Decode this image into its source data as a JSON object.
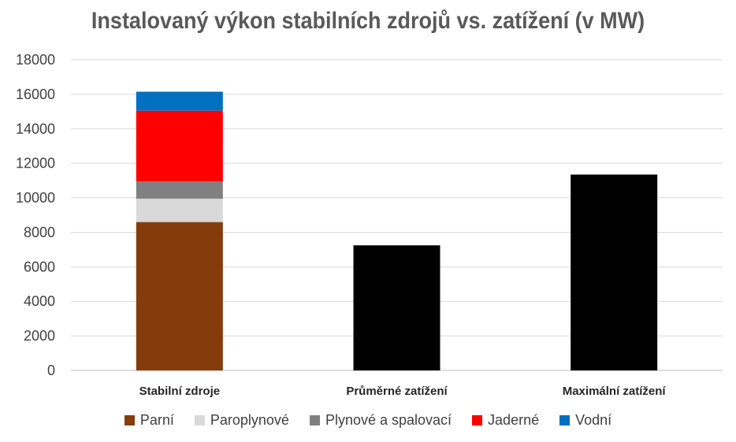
{
  "chart_data": {
    "type": "bar",
    "stacked": true,
    "title": "Instalovaný výkon stabilních zdrojů vs. zatížení (v MW)",
    "xlabel": "",
    "ylabel": "",
    "ylim": [
      0,
      18000
    ],
    "yticks": [
      0,
      2000,
      4000,
      6000,
      8000,
      10000,
      12000,
      14000,
      16000,
      18000
    ],
    "grid": true,
    "legend_position": "bottom",
    "categories": [
      "Stabilní zdroje",
      "Průměrné zatížení",
      "Maximální zatížení"
    ],
    "series": [
      {
        "name": "Parní",
        "color": "#843c0c",
        "values": [
          8600,
          0,
          0
        ]
      },
      {
        "name": "Paroplynové",
        "color": "#d9d9d9",
        "values": [
          1350,
          0,
          0
        ]
      },
      {
        "name": "Plynové a spalovací",
        "color": "#808080",
        "values": [
          1000,
          0,
          0
        ]
      },
      {
        "name": "Jaderné",
        "color": "#ff0000",
        "values": [
          4100,
          0,
          0
        ]
      },
      {
        "name": "Vodní",
        "color": "#0070c0",
        "values": [
          1100,
          0,
          0
        ]
      },
      {
        "name": "",
        "color": "#000000",
        "values": [
          0,
          7250,
          11350
        ]
      }
    ]
  }
}
